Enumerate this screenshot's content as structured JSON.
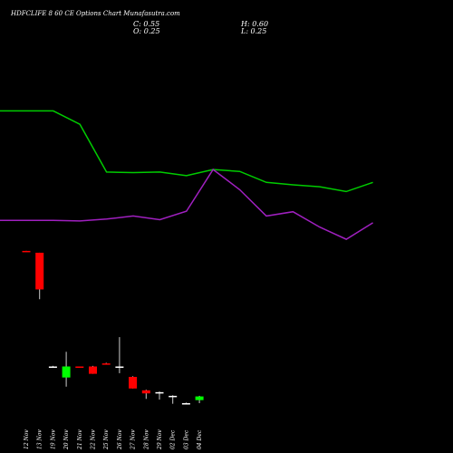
{
  "header": {
    "title": "HDFCLIFE 8        60  CE Options  Chart Munafasutra.com",
    "close_label": "C: 0.55",
    "open_label": "O: 0.25",
    "high_label": "H: 0.60",
    "low_label": "L: 0.25"
  },
  "colors": {
    "background": "#000000",
    "up": "#00ff00",
    "down": "#ff0000",
    "neutral": "#ffffff",
    "line_green": "#00cc00",
    "line_purple": "#a020c0"
  },
  "chart_data": {
    "type": "candlestick",
    "categories": [
      "12 Nov",
      "13 Nov",
      "19 Nov",
      "20 Nov",
      "21 Nov",
      "22 Nov",
      "25 Nov",
      "26 Nov",
      "27 Nov",
      "28 Nov",
      "29 Nov",
      "02 Dec",
      "03 Dec",
      "04 Dec"
    ],
    "candles": [
      {
        "date": "12 Nov",
        "open": 12.45,
        "high": 12.45,
        "low": 12.4,
        "close": 12.4
      },
      {
        "date": "13 Nov",
        "open": 12.3,
        "high": 12.3,
        "low": 8.5,
        "close": 9.3
      },
      {
        "date": "19 Nov",
        "open": 3.0,
        "high": 3.05,
        "low": 2.95,
        "close": 3.0
      },
      {
        "date": "20 Nov",
        "open": 2.1,
        "high": 4.2,
        "low": 1.35,
        "close": 3.0
      },
      {
        "date": "21 Nov",
        "open": 3.0,
        "high": 3.0,
        "low": 2.95,
        "close": 2.95
      },
      {
        "date": "22 Nov",
        "open": 3.0,
        "high": 3.05,
        "low": 2.4,
        "close": 2.4
      },
      {
        "date": "25 Nov",
        "open": 3.25,
        "high": 3.3,
        "low": 3.2,
        "close": 3.2
      },
      {
        "date": "26 Nov",
        "open": 3.0,
        "high": 5.4,
        "low": 2.45,
        "close": 3.0
      },
      {
        "date": "27 Nov",
        "open": 2.15,
        "high": 2.2,
        "low": 1.2,
        "close": 1.2
      },
      {
        "date": "28 Nov",
        "open": 1.05,
        "high": 1.1,
        "low": 0.35,
        "close": 0.8
      },
      {
        "date": "29 Nov",
        "open": 0.9,
        "high": 0.95,
        "low": 0.3,
        "close": 0.9
      },
      {
        "date": "02 Dec",
        "open": 0.6,
        "high": 0.65,
        "low": -0.05,
        "close": 0.6
      },
      {
        "date": "03 Dec",
        "open": 0.0,
        "high": 0.05,
        "low": -0.1,
        "close": 0.0
      },
      {
        "date": "04 Dec",
        "open": 0.25,
        "high": 0.6,
        "low": 0.0,
        "close": 0.55
      }
    ],
    "series": [
      {
        "values": [
          23.9,
          23.9,
          22.8,
          18.9,
          18.85,
          18.9,
          18.6,
          19.1,
          18.95,
          18.05,
          17.85,
          17.7,
          17.3,
          18.05
        ]
      },
      {
        "values": [
          14.95,
          14.95,
          14.9,
          15.05,
          15.3,
          15.0,
          15.7,
          19.1,
          17.45,
          15.3,
          15.65,
          14.4,
          13.4,
          14.75
        ]
      }
    ],
    "ylim": [
      -2,
      30
    ]
  }
}
